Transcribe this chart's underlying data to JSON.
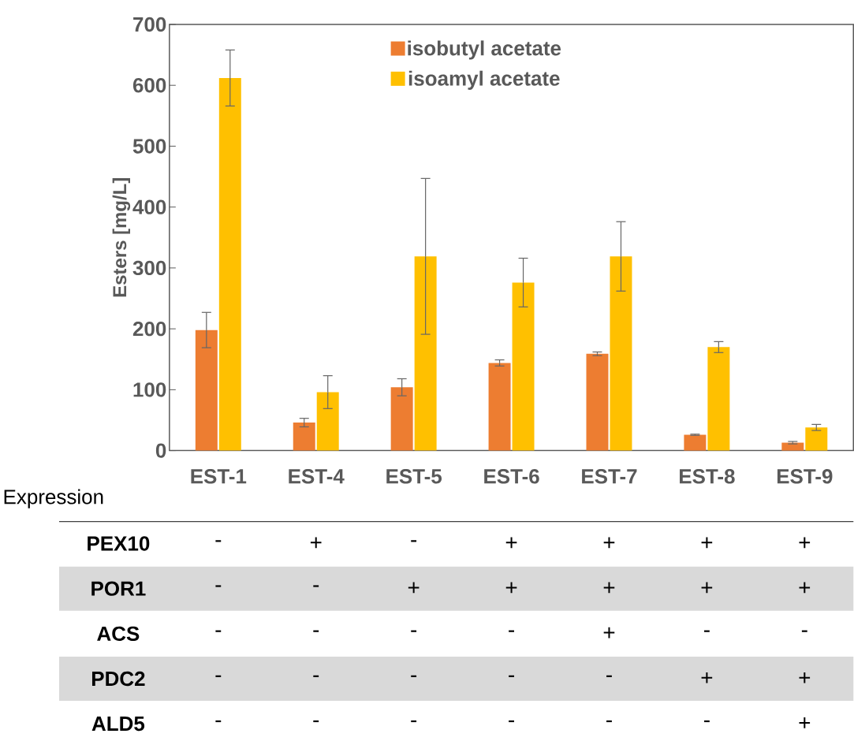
{
  "chart_data": {
    "type": "bar",
    "ylabel": "Esters [mg/L]",
    "categories": [
      "EST-1",
      "EST-4",
      "EST-5",
      "EST-6",
      "EST-7",
      "EST-8",
      "EST-9"
    ],
    "series": [
      {
        "name": "isobutyl acetate",
        "color": "#ed7d31",
        "values": [
          198,
          46,
          104,
          144,
          159,
          26,
          13
        ],
        "errors": [
          29,
          7,
          14,
          5,
          3,
          1,
          2
        ]
      },
      {
        "name": "isoamyl acetate",
        "color": "#ffc000",
        "values": [
          612,
          96,
          319,
          276,
          319,
          170,
          38
        ],
        "errors": [
          46,
          27,
          128,
          40,
          57,
          9,
          5
        ]
      }
    ],
    "ylim": [
      0,
      700
    ],
    "yticks": [
      0,
      100,
      200,
      300,
      400,
      500,
      600,
      700
    ],
    "legend": "top",
    "annotations": [
      "Expression",
      "PEX10",
      "-",
      "+",
      "-",
      "+",
      "+",
      "+",
      "+",
      "POR1",
      "-",
      "-",
      "+",
      "+",
      "+",
      "+",
      "+",
      "ACS",
      "-",
      "-",
      "-",
      "-",
      "+",
      "-",
      "-",
      "PDC2",
      "-",
      "-",
      "-",
      "-",
      "-",
      "+",
      "+",
      "ALD5",
      "-",
      "-",
      "-",
      "-",
      "-",
      "-",
      "+"
    ]
  }
}
